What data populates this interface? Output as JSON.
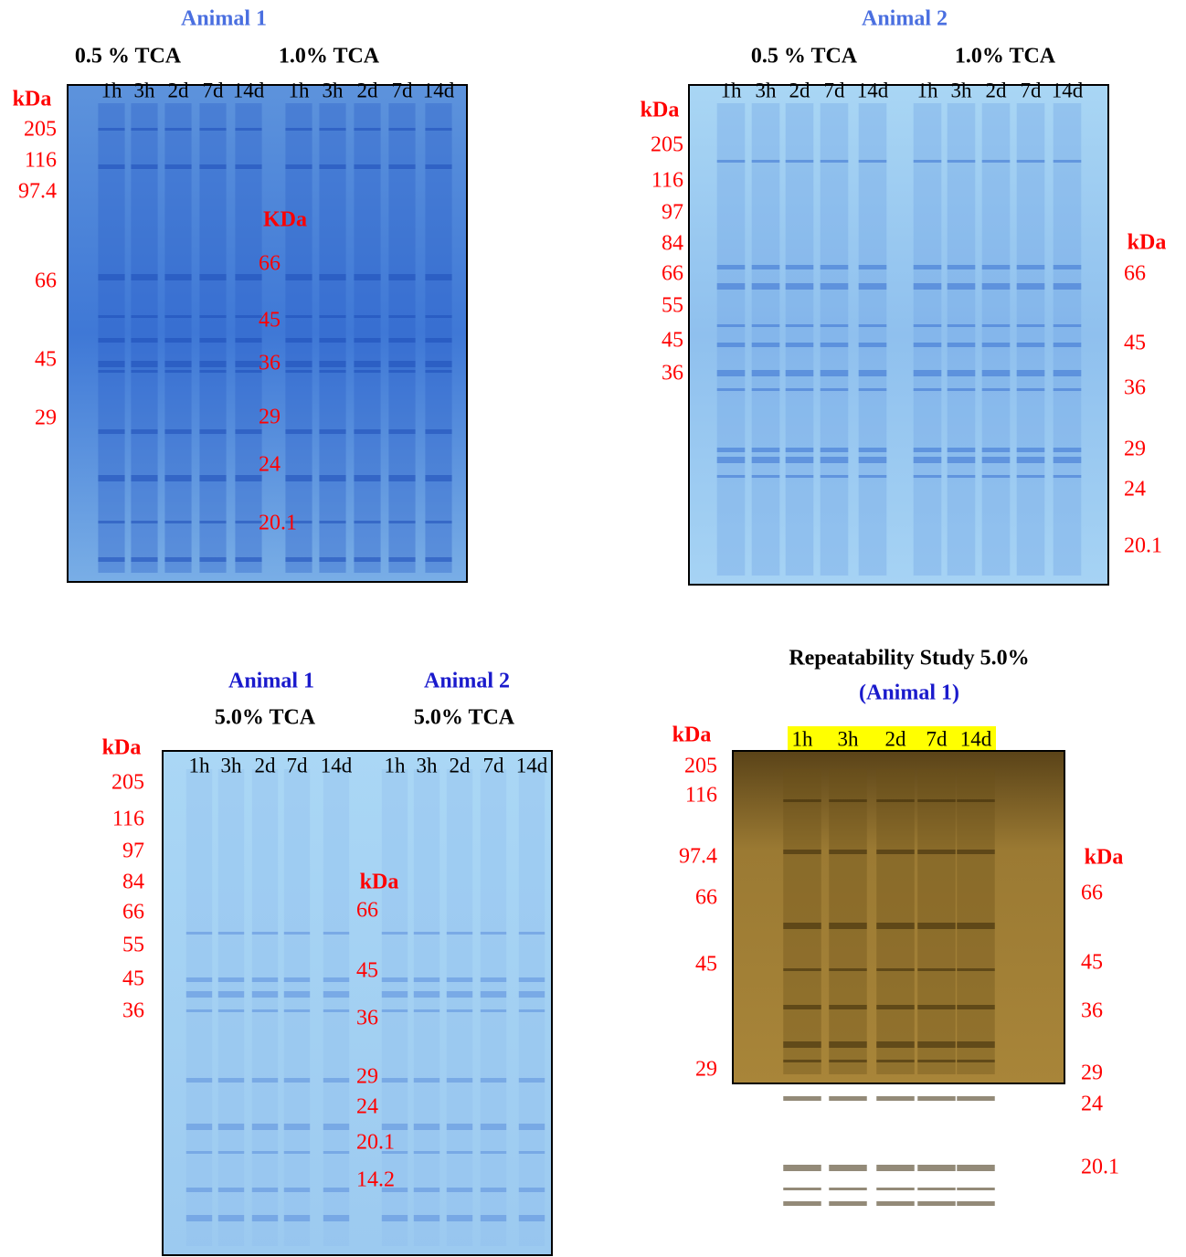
{
  "panels": [
    {
      "titles": [
        "Animal 1"
      ],
      "groups": [
        "0.5 % TCA",
        "1.0% TCA"
      ],
      "lanes": [
        "1h",
        "3h",
        "2d",
        "7d",
        "14d",
        "1h",
        "3h",
        "2d",
        "7d",
        "14d"
      ],
      "markers_left": {
        "unit": "kDa",
        "labels": [
          "205",
          "116",
          "97.4",
          "66",
          "45",
          "29"
        ]
      },
      "markers_inner": {
        "unit": "KDa",
        "labels": [
          "66",
          "45",
          "36",
          "29",
          "24",
          "20.1"
        ]
      }
    },
    {
      "titles": [
        "Animal 2"
      ],
      "groups": [
        "0.5 % TCA",
        "1.0% TCA"
      ],
      "lanes": [
        "1h",
        "3h",
        "2d",
        "7d",
        "14d",
        "1h",
        "3h",
        "2d",
        "7d",
        "14d"
      ],
      "markers_left": {
        "unit": "kDa",
        "labels": [
          "205",
          "116",
          "97",
          "84",
          "66",
          "55",
          "45",
          "36"
        ]
      },
      "markers_inner": {
        "unit": "kDa",
        "labels": [
          "66",
          "45",
          "36",
          "29",
          "24",
          "20.1"
        ]
      }
    },
    {
      "titles": [
        "Animal 1",
        "Animal  2"
      ],
      "groups": [
        "5.0% TCA",
        "5.0% TCA"
      ],
      "lanes": [
        "1h",
        "3h",
        "2d",
        "7d",
        "14d",
        "1h",
        "3h",
        "2d",
        "7d",
        "14d"
      ],
      "markers_left": {
        "unit": "kDa",
        "labels": [
          "205",
          "116",
          "97",
          "84",
          "66",
          "55",
          "45",
          "36"
        ]
      },
      "markers_inner": {
        "unit": "kDa",
        "labels": [
          "66",
          "45",
          "36",
          "29",
          "24",
          "20.1",
          "14.2"
        ]
      }
    },
    {
      "titles": [
        "Repeatability Study 5.0%",
        "(Animal 1)"
      ],
      "groups": [],
      "lanes": [
        "1h",
        "3h",
        "2d",
        "7d",
        "14d"
      ],
      "markers_left": {
        "unit": "kDa",
        "labels": [
          "205",
          "116",
          "97.4",
          "66",
          "45",
          "29"
        ]
      },
      "markers_inner": {
        "unit": "kDa",
        "labels": [
          "66",
          "45",
          "36",
          "29",
          "24",
          "20.1"
        ]
      }
    }
  ]
}
